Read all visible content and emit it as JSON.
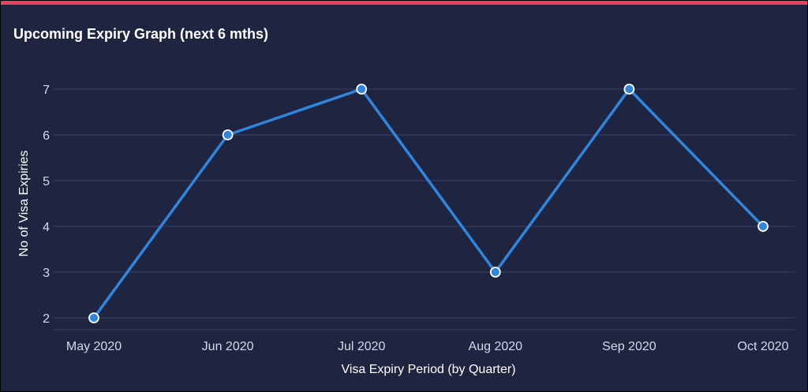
{
  "theme": {
    "background": "#1f2540",
    "accent": "#e8415f",
    "line_color": "#2f86de",
    "grid_color": "#39406a",
    "text_color": "#ffffff",
    "tick_color": "#d6d9e6"
  },
  "chart_data": {
    "type": "line",
    "title": "Upcoming Expiry Graph (next 6 mths)",
    "xlabel": "Visa Expiry Period (by Quarter)",
    "ylabel": "No of Visa Expiries",
    "categories": [
      "May 2020",
      "Jun 2020",
      "Jul 2020",
      "Aug 2020",
      "Sep 2020",
      "Oct 2020"
    ],
    "series": [
      {
        "values": [
          2,
          6,
          7,
          3,
          7,
          4
        ]
      }
    ],
    "ylim": [
      2,
      7
    ],
    "yticks": [
      2,
      3,
      4,
      5,
      6,
      7
    ],
    "grid": true,
    "legend": "none"
  }
}
